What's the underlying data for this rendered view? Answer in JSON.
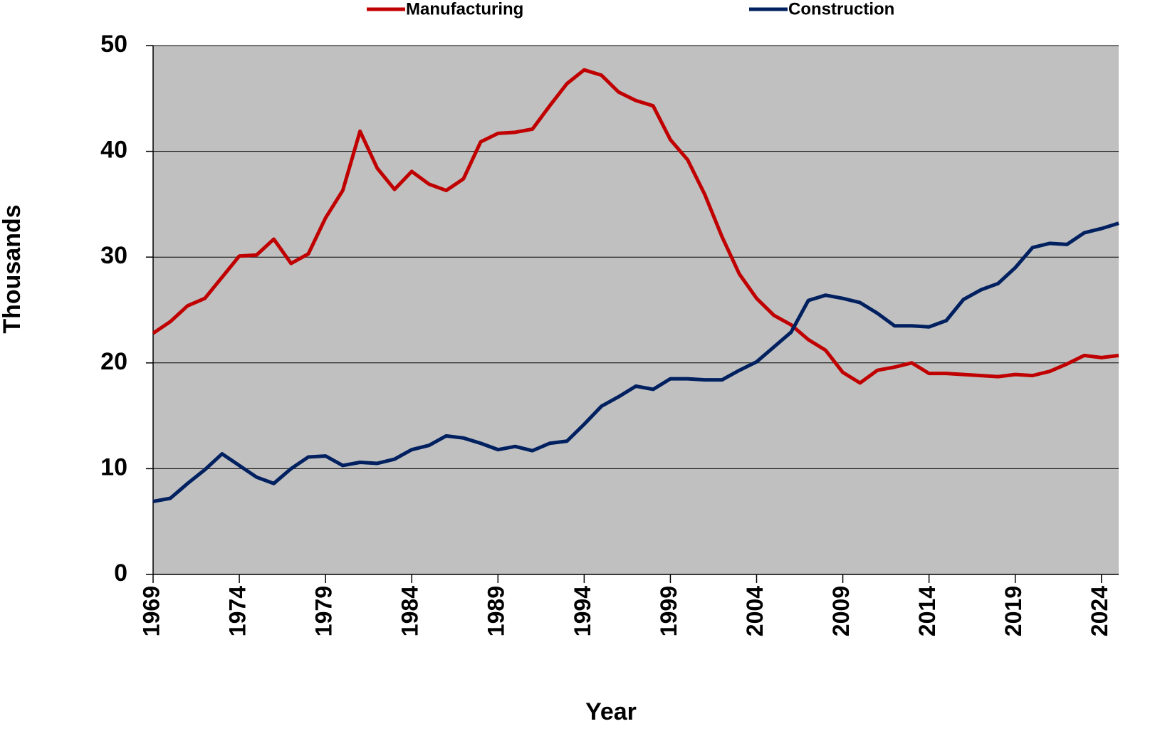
{
  "chart_data": {
    "type": "line",
    "x_label": "Year",
    "y_label": "Thousands",
    "x": [
      1969,
      1970,
      1971,
      1972,
      1973,
      1974,
      1975,
      1976,
      1977,
      1978,
      1979,
      1980,
      1981,
      1982,
      1983,
      1984,
      1985,
      1986,
      1987,
      1988,
      1989,
      1990,
      1991,
      1992,
      1993,
      1994,
      1995,
      1996,
      1997,
      1998,
      1999,
      2000,
      2001,
      2002,
      2003,
      2004,
      2005,
      2006,
      2007,
      2008,
      2009,
      2010,
      2011,
      2012,
      2013,
      2014,
      2015,
      2016,
      2017,
      2018,
      2019,
      2020,
      2021,
      2022,
      2023,
      2024,
      2025
    ],
    "series": [
      {
        "name": "Manufacturing",
        "color": "#c00000",
        "values": [
          22.8,
          23.9,
          25.4,
          26.1,
          28.1,
          30.1,
          30.2,
          31.7,
          29.4,
          30.3,
          33.7,
          36.3,
          41.9,
          38.4,
          36.4,
          38.1,
          36.9,
          36.3,
          37.4,
          40.9,
          41.7,
          41.8,
          42.1,
          44.3,
          46.4,
          47.7,
          47.2,
          45.6,
          44.8,
          44.3,
          41.1,
          39.2,
          35.9,
          31.9,
          28.4,
          26.1,
          24.5,
          23.6,
          22.2,
          21.2,
          19.1,
          18.1,
          19.3,
          19.6,
          20.0,
          19.0,
          19.0,
          18.9,
          18.8,
          18.7,
          18.9,
          18.8,
          19.2,
          19.9,
          20.7,
          20.5,
          20.7
        ]
      },
      {
        "name": "Construction",
        "color": "#002060",
        "values": [
          6.9,
          7.2,
          8.6,
          9.9,
          11.4,
          10.3,
          9.2,
          8.6,
          10.0,
          11.1,
          11.2,
          10.3,
          10.6,
          10.5,
          10.9,
          11.8,
          12.2,
          13.1,
          12.9,
          12.4,
          11.8,
          12.1,
          11.7,
          12.4,
          12.6,
          14.2,
          15.9,
          16.8,
          17.8,
          17.5,
          18.5,
          18.5,
          18.4,
          18.4,
          19.3,
          20.1,
          21.5,
          22.9,
          25.9,
          26.4,
          26.1,
          25.7,
          24.7,
          23.5,
          23.5,
          23.4,
          24.0,
          26.0,
          26.9,
          27.5,
          29.0,
          30.9,
          31.3,
          31.2,
          32.3,
          32.7,
          33.2
        ]
      }
    ],
    "xlim": [
      1969,
      2025
    ],
    "xticks": [
      1969,
      1974,
      1979,
      1984,
      1989,
      1994,
      1999,
      2004,
      2009,
      2014,
      2019,
      2024
    ],
    "ylim": [
      0,
      50
    ],
    "yticks": [
      0,
      10,
      20,
      30,
      40,
      50
    ],
    "grid": true,
    "legend": "top",
    "plot_background": "#c0c0c0"
  }
}
